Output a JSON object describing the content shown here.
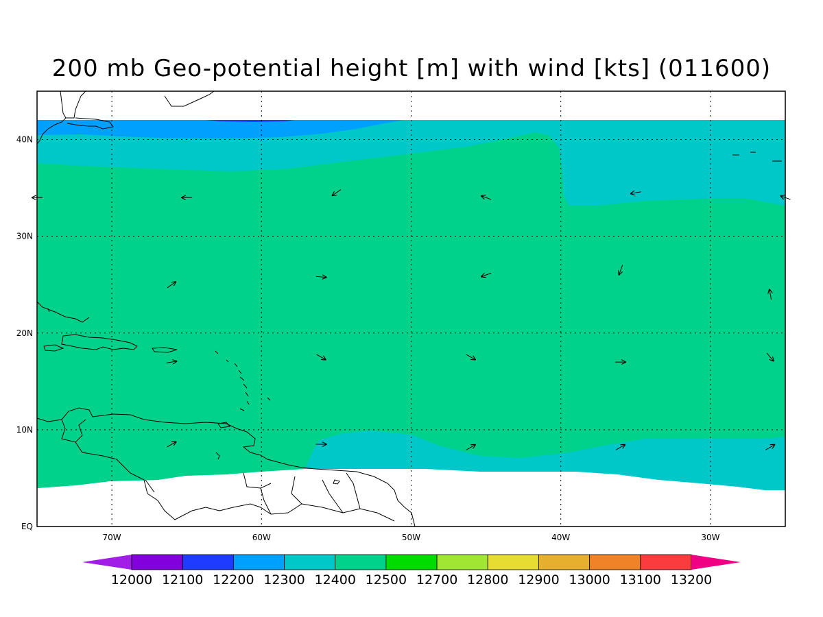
{
  "title": "200 mb Geo-potential height [m] with wind [kts] (011600)",
  "lat_labels": [
    "40N",
    "30N",
    "20N",
    "10N",
    "EQ"
  ],
  "lon_labels": [
    "70W",
    "60W",
    "50W",
    "40W",
    "30W"
  ],
  "map_extent": {
    "lon_min": -75,
    "lon_max": -25,
    "lat_min": 0,
    "lat_max": 45
  },
  "colorbar": {
    "labels": [
      "12000",
      "12100",
      "12200",
      "12300",
      "12400",
      "12500",
      "12700",
      "12800",
      "12900",
      "13000",
      "13100",
      "13200"
    ],
    "colors": [
      "#a01ee6",
      "#8200dc",
      "#1e3cff",
      "#00a0ff",
      "#00c8c8",
      "#00d28c",
      "#00dc00",
      "#a0e632",
      "#e6dc32",
      "#e6af2d",
      "#f08228",
      "#fa3c3c",
      "#f00082"
    ]
  },
  "fill_colors": {
    "band_12200": "#1e3cff",
    "band_12300": "#00a0ff",
    "band_12400": "#00c8c8",
    "band_12500": "#00d28c"
  },
  "wind_vectors": [
    {
      "lon": -75,
      "lat": 34,
      "dir": 270
    },
    {
      "lon": -65,
      "lat": 34,
      "dir": 270
    },
    {
      "lon": -55,
      "lat": 34.5,
      "dir": 235
    },
    {
      "lon": -45,
      "lat": 34,
      "dir": 290
    },
    {
      "lon": -35,
      "lat": 34.5,
      "dir": 260
    },
    {
      "lon": -25,
      "lat": 34,
      "dir": 290
    },
    {
      "lon": -66,
      "lat": 25,
      "dir": 55
    },
    {
      "lon": -56,
      "lat": 25.8,
      "dir": 95
    },
    {
      "lon": -45,
      "lat": 26,
      "dir": 250
    },
    {
      "lon": -36,
      "lat": 26.5,
      "dir": 200
    },
    {
      "lon": -26,
      "lat": 24,
      "dir": 350
    },
    {
      "lon": -66,
      "lat": 17,
      "dir": 80
    },
    {
      "lon": -56,
      "lat": 17.5,
      "dir": 120
    },
    {
      "lon": -46,
      "lat": 17.5,
      "dir": 120
    },
    {
      "lon": -36,
      "lat": 17,
      "dir": 90
    },
    {
      "lon": -26,
      "lat": 17.5,
      "dir": 140
    },
    {
      "lon": -66,
      "lat": 8.5,
      "dir": 60
    },
    {
      "lon": -56,
      "lat": 8.5,
      "dir": 90
    },
    {
      "lon": -46,
      "lat": 8.2,
      "dir": 60
    },
    {
      "lon": -36,
      "lat": 8.2,
      "dir": 60
    },
    {
      "lon": -26,
      "lat": 8.2,
      "dir": 60
    }
  ]
}
